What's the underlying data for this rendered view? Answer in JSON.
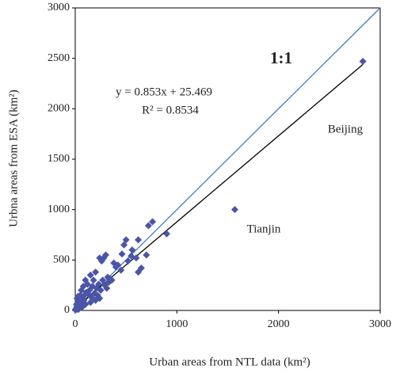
{
  "chart_data": {
    "type": "scatter",
    "xlabel": "Urban areas from NTL data (km²)",
    "ylabel": "Urbna areas from ESA (km²)",
    "annotations": [
      "1:1",
      "y = 0.853x + 25.469",
      "R² = 0.8534",
      "Beijing",
      "Tianjin"
    ],
    "xlim": [
      0,
      3000
    ],
    "ylim": [
      0,
      3000
    ],
    "xticks": [
      0,
      1000,
      2000,
      3000
    ],
    "yticks": [
      0,
      500,
      1000,
      1500,
      2000,
      2500,
      3000
    ],
    "grid": false,
    "color": "#4a55a6",
    "reference_lines": [
      {
        "slope": 1,
        "intercept": 0,
        "xlim": [
          0,
          3000
        ],
        "color": "#3a7fc1"
      },
      {
        "slope": 0.853,
        "intercept": 25.469,
        "xlim": [
          0,
          2830
        ],
        "color": "#000000"
      }
    ],
    "x": [
      2830,
      1570,
      900,
      760,
      720,
      620,
      600,
      650,
      620,
      500,
      480,
      460,
      420,
      380,
      300,
      280,
      260,
      240,
      320,
      350,
      200,
      180,
      150,
      120,
      100,
      80,
      60,
      50,
      40,
      30,
      20,
      10,
      5,
      560,
      520,
      700,
      550,
      450,
      400,
      330,
      270,
      230,
      210,
      170,
      140,
      130,
      110,
      90,
      70,
      65,
      55,
      45,
      35,
      25,
      15,
      12,
      8,
      3,
      160,
      190,
      220,
      250,
      290,
      310,
      360,
      240,
      200,
      150,
      100,
      75,
      60,
      40,
      30,
      20,
      18,
      28,
      38,
      48,
      58,
      85
    ],
    "y": [
      2470,
      1000,
      760,
      880,
      840,
      700,
      520,
      420,
      380,
      700,
      650,
      560,
      450,
      470,
      550,
      520,
      490,
      520,
      330,
      310,
      380,
      300,
      350,
      260,
      300,
      240,
      200,
      150,
      100,
      60,
      40,
      20,
      10,
      600,
      490,
      550,
      540,
      400,
      430,
      280,
      300,
      260,
      220,
      240,
      200,
      160,
      180,
      150,
      120,
      90,
      110,
      70,
      80,
      50,
      30,
      60,
      15,
      5,
      130,
      170,
      150,
      200,
      250,
      220,
      300,
      120,
      100,
      80,
      60,
      40,
      30,
      20,
      10,
      15,
      120,
      140,
      60,
      30,
      70,
      100
    ]
  }
}
